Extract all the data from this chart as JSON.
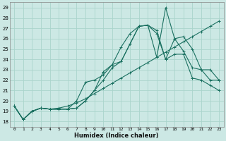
{
  "xlabel": "Humidex (Indice chaleur)",
  "bg_color": "#cce8e4",
  "grid_color": "#aad4cc",
  "line_color": "#1a7060",
  "xlim": [
    -0.5,
    23.5
  ],
  "ylim": [
    17.5,
    29.5
  ],
  "xticks": [
    0,
    1,
    2,
    3,
    4,
    5,
    6,
    7,
    8,
    9,
    10,
    11,
    12,
    13,
    14,
    15,
    16,
    17,
    18,
    19,
    20,
    21,
    22,
    23
  ],
  "yticks": [
    18,
    19,
    20,
    21,
    22,
    23,
    24,
    25,
    26,
    27,
    28,
    29
  ],
  "series": [
    [
      19.5,
      18.2,
      19.0,
      19.3,
      19.2,
      19.2,
      19.2,
      19.3,
      20.0,
      21.0,
      22.8,
      23.5,
      23.8,
      25.5,
      27.2,
      27.3,
      26.8,
      24.0,
      26.0,
      24.8,
      23.2,
      23.0,
      22.0,
      22.0
    ],
    [
      19.5,
      18.2,
      19.0,
      19.3,
      19.2,
      19.2,
      19.2,
      19.3,
      20.0,
      21.0,
      22.0,
      23.2,
      23.8,
      25.5,
      27.2,
      27.3,
      24.2,
      29.0,
      26.0,
      26.2,
      25.0,
      23.0,
      23.0,
      22.0
    ],
    [
      19.5,
      18.2,
      19.0,
      19.3,
      19.2,
      19.2,
      19.2,
      20.0,
      21.8,
      22.0,
      22.5,
      23.5,
      25.2,
      26.5,
      27.2,
      27.3,
      26.5,
      24.0,
      24.5,
      24.5,
      22.2,
      22.0,
      21.5,
      21.0
    ],
    [
      19.5,
      18.2,
      19.0,
      19.3,
      19.2,
      19.3,
      19.5,
      19.8,
      20.2,
      20.7,
      21.2,
      21.7,
      22.2,
      22.7,
      23.2,
      23.7,
      24.2,
      24.7,
      25.2,
      25.7,
      26.2,
      26.7,
      27.2,
      27.7
    ]
  ]
}
